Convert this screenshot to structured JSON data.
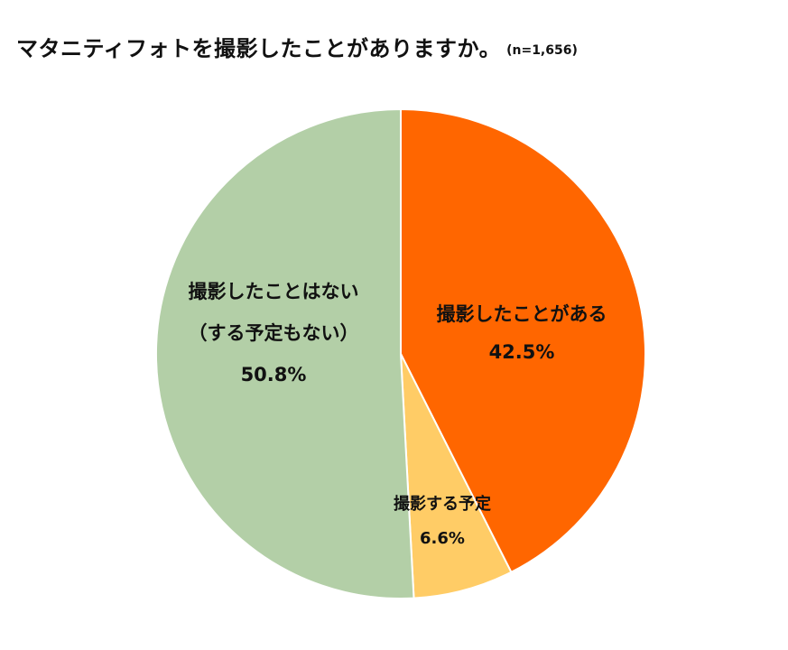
{
  "chart_data": {
    "type": "pie",
    "title": "マタニティフォトを撮影したことがありますか。",
    "subtitle": "(n=1,656)",
    "start_angle_deg": 0,
    "direction": "clockwise",
    "slices": [
      {
        "label_lines": [
          "撮影したことがある"
        ],
        "value": 42.5,
        "value_label": "42.5%",
        "color": "#FF6600"
      },
      {
        "label_lines": [
          "撮影する予定"
        ],
        "value": 6.6,
        "value_label": "6.6%",
        "color": "#FFCC66"
      },
      {
        "label_lines": [
          "撮影したことはない",
          "（する予定もない）"
        ],
        "value": 50.8,
        "value_label": "50.8%",
        "color": "#B3CFA7"
      }
    ],
    "border_color": "#FFFFFF"
  }
}
